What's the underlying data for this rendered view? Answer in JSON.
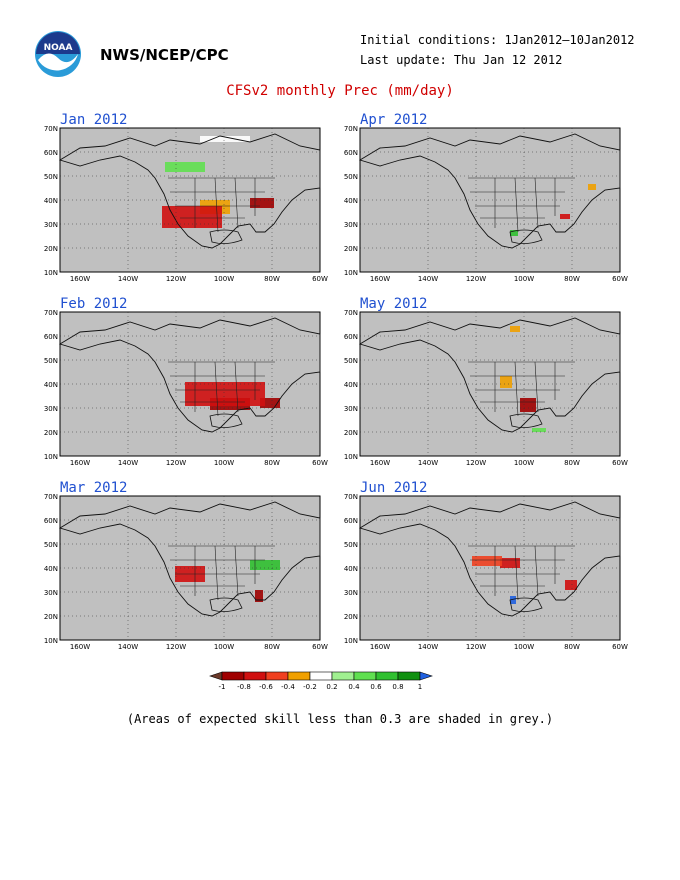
{
  "header": {
    "agency": "NWS/NCEP/CPC",
    "initial_conditions": "Initial conditions: 1Jan2012–10Jan2012",
    "last_update": "Last update: Thu Jan 12 2012",
    "title": "CFSv2 monthly Prec (mm/day)",
    "logo_icon": "noaa-logo-icon"
  },
  "panels": [
    {
      "month": "Jan 2012"
    },
    {
      "month": "Apr 2012"
    },
    {
      "month": "Feb 2012"
    },
    {
      "month": "May 2012"
    },
    {
      "month": "Mar 2012"
    },
    {
      "month": "Jun 2012"
    }
  ],
  "axes": {
    "lat_labels": [
      "70N",
      "60N",
      "50N",
      "40N",
      "30N",
      "20N",
      "10N"
    ],
    "lon_labels": [
      "160W",
      "140W",
      "120W",
      "100W",
      "80W",
      "60W"
    ]
  },
  "colorbar": {
    "labels": [
      "-1",
      "-0.8",
      "-0.6",
      "-0.4",
      "-0.2",
      "0.2",
      "0.4",
      "0.6",
      "0.8",
      "1"
    ],
    "colors": [
      "#6b3a2a",
      "#a00000",
      "#d01010",
      "#f04020",
      "#f0a000",
      "#ffffff",
      "#a0f090",
      "#60e050",
      "#30c030",
      "#109010",
      "#2060e0"
    ]
  },
  "footnote": "(Areas of expected skill less than 0.3 are shaded in grey.)"
}
